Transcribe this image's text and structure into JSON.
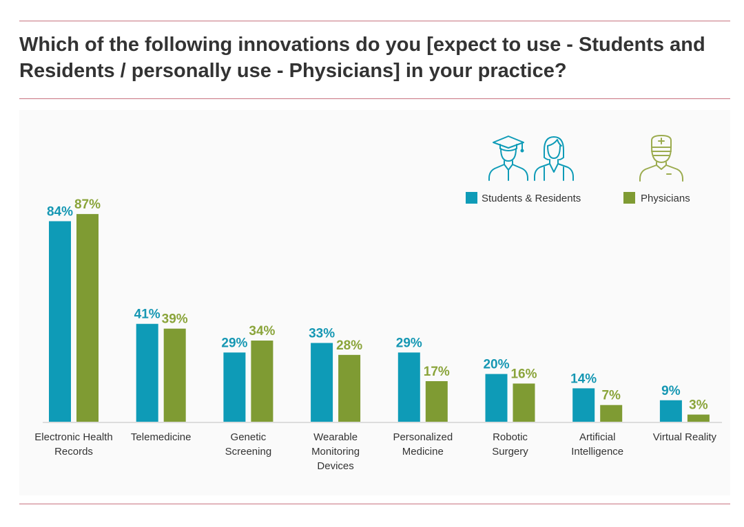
{
  "chart_data": {
    "type": "bar",
    "title": "Which of the following innovations do you [expect to use - Students and Residents / personally use - Physicians] in your practice?",
    "categories": [
      [
        "Electronic Health",
        "Records"
      ],
      [
        "Telemedicine"
      ],
      [
        "Genetic",
        "Screening"
      ],
      [
        "Wearable",
        "Monitoring",
        "Devices"
      ],
      [
        "Personalized",
        "Medicine"
      ],
      [
        "Robotic",
        "Surgery"
      ],
      [
        "Artificial",
        "Intelligence"
      ],
      [
        "Virtual Reality"
      ]
    ],
    "series": [
      {
        "name": "Students & Residents",
        "color": "#0e9bb7",
        "values": [
          84,
          41,
          29,
          33,
          29,
          20,
          14,
          9
        ]
      },
      {
        "name": "Physicians",
        "color": "#7f9b33",
        "values": [
          87,
          39,
          34,
          28,
          17,
          16,
          7,
          3
        ]
      }
    ],
    "value_suffix": "%",
    "xlabel": "",
    "ylabel": "",
    "ylim": [
      0,
      100
    ],
    "grid": false,
    "legend": "top-right"
  },
  "legend": {
    "icons": [
      "graduate-icon",
      "doctor-woman-icon",
      "surgeon-icon"
    ]
  }
}
